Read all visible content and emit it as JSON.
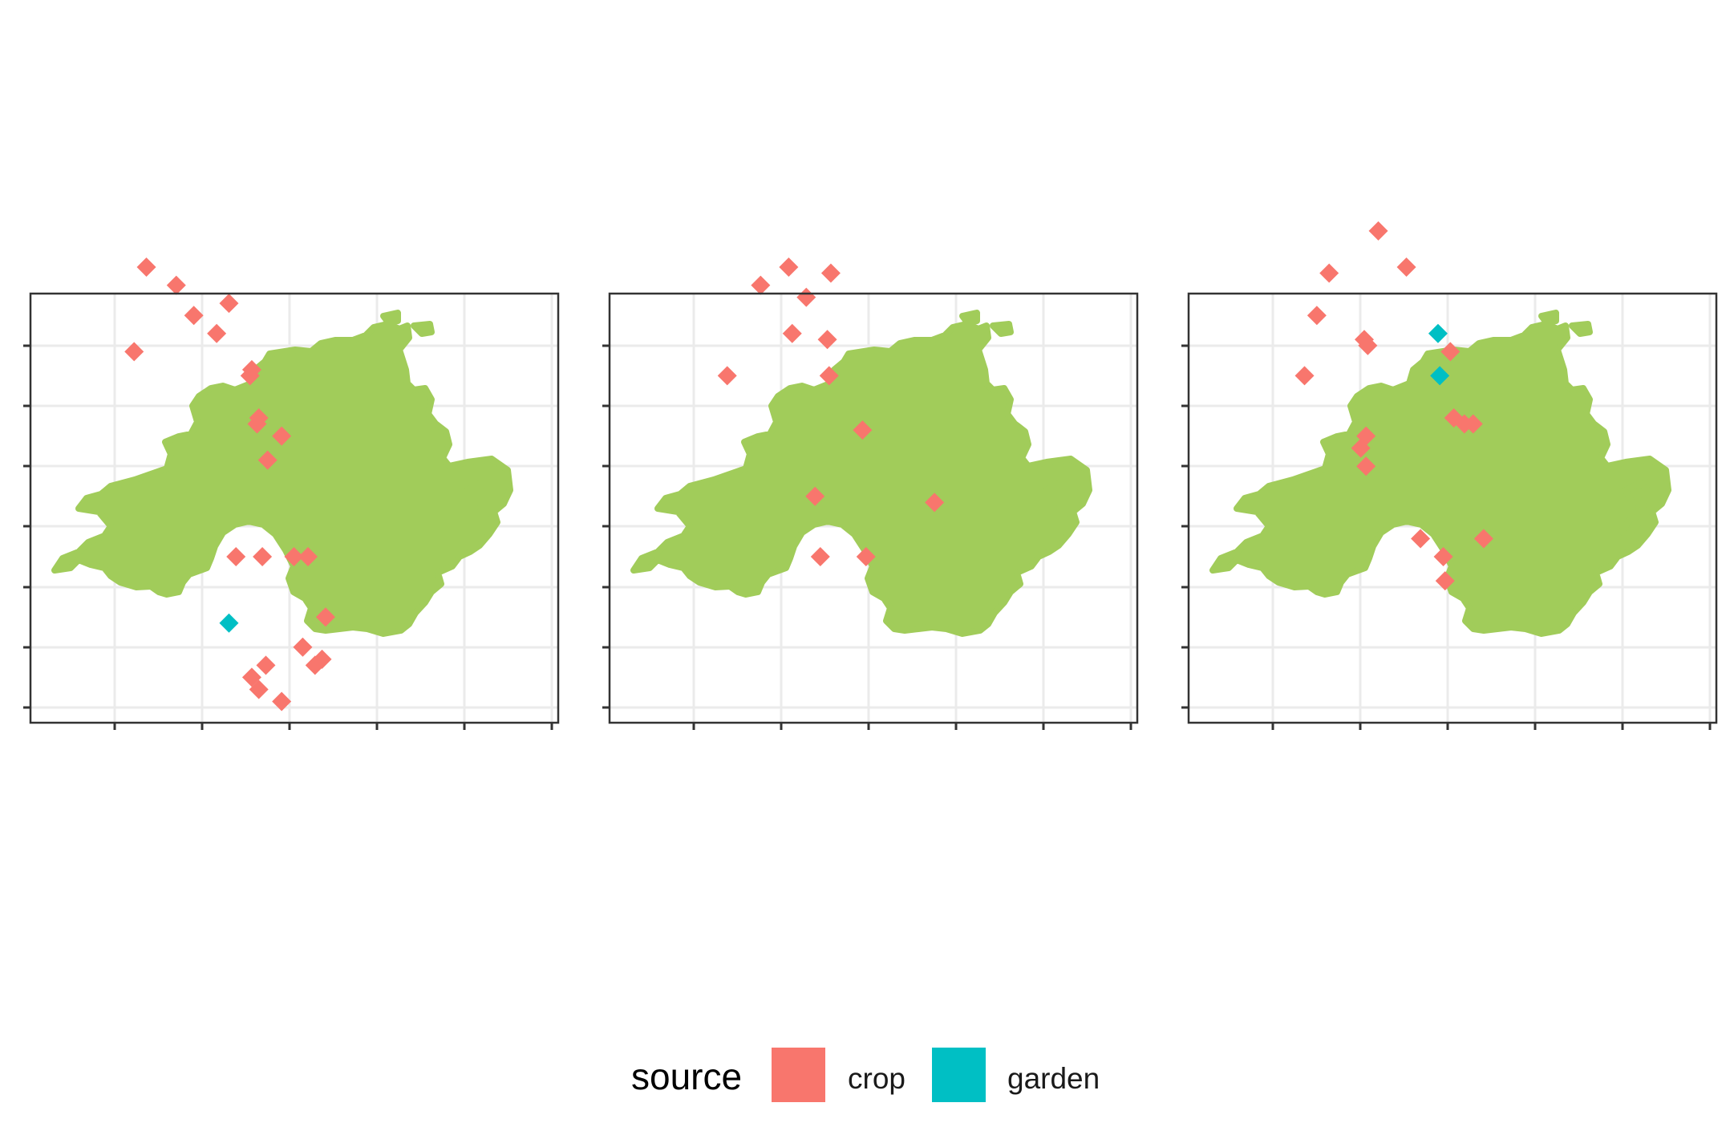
{
  "chart_data": {
    "type": "scatter",
    "panels": [
      {
        "points": [
          {
            "x": 6.6,
            "y": 7.3,
            "source": "crop"
          },
          {
            "x": 8.3,
            "y": 7.0,
            "source": "crop"
          },
          {
            "x": 9.3,
            "y": 6.5,
            "source": "crop"
          },
          {
            "x": 11.3,
            "y": 6.7,
            "source": "crop"
          },
          {
            "x": 5.9,
            "y": 5.9,
            "source": "crop"
          },
          {
            "x": 10.6,
            "y": 6.2,
            "source": "crop"
          },
          {
            "x": 12.5,
            "y": 5.5,
            "source": "crop"
          },
          {
            "x": 12.6,
            "y": 5.6,
            "source": "crop"
          },
          {
            "x": 13.0,
            "y": 4.8,
            "source": "crop"
          },
          {
            "x": 12.9,
            "y": 4.7,
            "source": "crop"
          },
          {
            "x": 13.5,
            "y": 4.1,
            "source": "crop"
          },
          {
            "x": 14.3,
            "y": 4.5,
            "source": "crop"
          },
          {
            "x": 11.7,
            "y": 2.5,
            "source": "crop"
          },
          {
            "x": 13.2,
            "y": 2.5,
            "source": "crop"
          },
          {
            "x": 15.0,
            "y": 2.5,
            "source": "crop"
          },
          {
            "x": 15.8,
            "y": 2.5,
            "source": "crop"
          },
          {
            "x": 16.8,
            "y": 1.5,
            "source": "crop"
          },
          {
            "x": 15.5,
            "y": 1.0,
            "source": "crop"
          },
          {
            "x": 13.4,
            "y": 0.7,
            "source": "crop"
          },
          {
            "x": 12.6,
            "y": 0.5,
            "source": "crop"
          },
          {
            "x": 13.0,
            "y": 0.3,
            "source": "crop"
          },
          {
            "x": 14.3,
            "y": 0.1,
            "source": "crop"
          },
          {
            "x": 16.2,
            "y": 0.7,
            "source": "crop"
          },
          {
            "x": 16.6,
            "y": 0.8,
            "source": "crop"
          },
          {
            "x": 11.3,
            "y": 1.4,
            "source": "garden"
          }
        ]
      },
      {
        "points": [
          {
            "x": 8.6,
            "y": 7.0,
            "source": "crop"
          },
          {
            "x": 10.2,
            "y": 7.3,
            "source": "crop"
          },
          {
            "x": 12.6,
            "y": 7.2,
            "source": "crop"
          },
          {
            "x": 11.2,
            "y": 6.8,
            "source": "crop"
          },
          {
            "x": 10.4,
            "y": 6.2,
            "source": "crop"
          },
          {
            "x": 12.4,
            "y": 6.1,
            "source": "crop"
          },
          {
            "x": 6.7,
            "y": 5.5,
            "source": "crop"
          },
          {
            "x": 12.5,
            "y": 5.5,
            "source": "crop"
          },
          {
            "x": 14.4,
            "y": 4.6,
            "source": "crop"
          },
          {
            "x": 11.7,
            "y": 3.5,
            "source": "crop"
          },
          {
            "x": 18.5,
            "y": 3.4,
            "source": "crop"
          },
          {
            "x": 12.0,
            "y": 2.5,
            "source": "crop"
          },
          {
            "x": 14.6,
            "y": 2.5,
            "source": "crop"
          }
        ]
      },
      {
        "points": [
          {
            "x": 10.8,
            "y": 7.9,
            "source": "crop"
          },
          {
            "x": 8.0,
            "y": 7.2,
            "source": "crop"
          },
          {
            "x": 12.4,
            "y": 7.3,
            "source": "crop"
          },
          {
            "x": 7.3,
            "y": 6.5,
            "source": "crop"
          },
          {
            "x": 10.0,
            "y": 6.1,
            "source": "crop"
          },
          {
            "x": 10.2,
            "y": 6.0,
            "source": "crop"
          },
          {
            "x": 6.6,
            "y": 5.5,
            "source": "crop"
          },
          {
            "x": 14.9,
            "y": 5.9,
            "source": "crop"
          },
          {
            "x": 15.1,
            "y": 4.8,
            "source": "crop"
          },
          {
            "x": 15.7,
            "y": 4.7,
            "source": "crop"
          },
          {
            "x": 16.2,
            "y": 4.7,
            "source": "crop"
          },
          {
            "x": 10.1,
            "y": 4.5,
            "source": "crop"
          },
          {
            "x": 9.8,
            "y": 4.3,
            "source": "crop"
          },
          {
            "x": 10.1,
            "y": 4.0,
            "source": "crop"
          },
          {
            "x": 13.2,
            "y": 2.8,
            "source": "crop"
          },
          {
            "x": 16.8,
            "y": 2.8,
            "source": "crop"
          },
          {
            "x": 14.5,
            "y": 2.5,
            "source": "crop"
          },
          {
            "x": 14.6,
            "y": 2.1,
            "source": "crop"
          },
          {
            "x": 14.2,
            "y": 6.2,
            "source": "garden"
          },
          {
            "x": 14.3,
            "y": 5.5,
            "source": "garden"
          }
        ]
      }
    ],
    "legend": {
      "title": "source",
      "position": "bottom",
      "entries": [
        {
          "label": "crop",
          "color": "#F8766D"
        },
        {
          "label": "garden",
          "color": "#00BFC4"
        }
      ]
    },
    "land_color": "#A1CC5A",
    "grid": true,
    "axis_tick_labels": "none"
  }
}
